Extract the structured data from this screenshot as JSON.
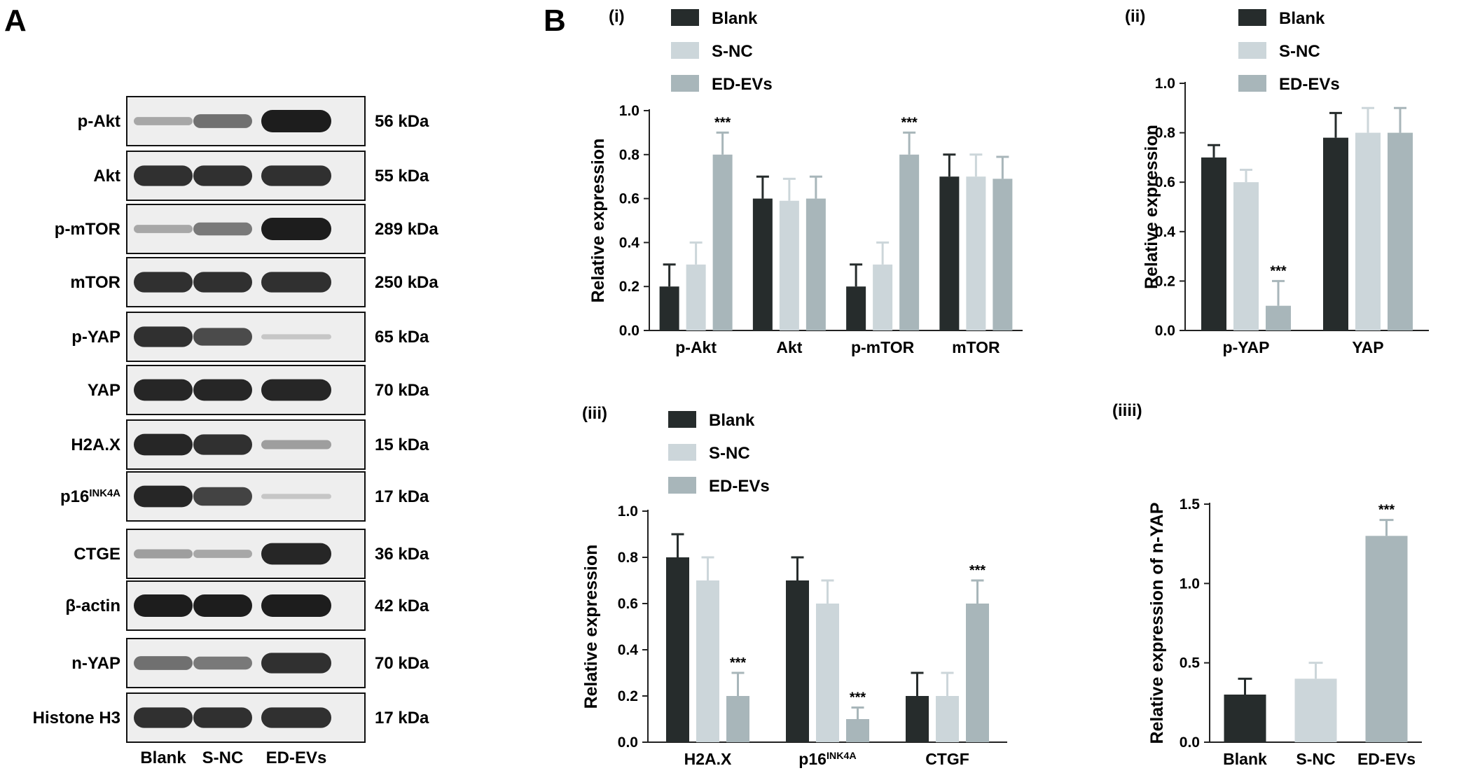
{
  "panel_a": {
    "letter": "A",
    "blots": [
      {
        "label": "p-Akt",
        "kda": "56 kDa",
        "bands": [
          0.25,
          0.55,
          1.0
        ]
      },
      {
        "label": "Akt",
        "kda": "55 kDa",
        "bands": [
          0.9,
          0.9,
          0.9
        ]
      },
      {
        "label": "p-mTOR",
        "kda": "289 kDa",
        "bands": [
          0.25,
          0.5,
          1.0
        ]
      },
      {
        "label": "mTOR",
        "kda": "250 kDa",
        "bands": [
          0.9,
          0.9,
          0.9
        ]
      },
      {
        "label": "p-YAP",
        "kda": "65 kDa",
        "bands": [
          0.9,
          0.75,
          0.08
        ]
      },
      {
        "label": "YAP",
        "kda": "70 kDa",
        "bands": [
          0.95,
          0.95,
          0.95
        ]
      },
      {
        "label": "H2A.X",
        "kda": "15 kDa",
        "bands": [
          0.95,
          0.9,
          0.3
        ]
      },
      {
        "label": "p16",
        "label_sup": "INK4A",
        "kda": "17 kDa",
        "bands": [
          0.95,
          0.8,
          0.08
        ]
      },
      {
        "label": "CTGE",
        "kda": "36 kDa",
        "bands": [
          0.3,
          0.25,
          0.95
        ]
      },
      {
        "label": "β-actin",
        "kda": "42 kDa",
        "bands": [
          1.0,
          1.0,
          1.0
        ]
      },
      {
        "label": "n-YAP",
        "kda": "70 kDa",
        "bands": [
          0.55,
          0.5,
          0.9
        ]
      },
      {
        "label": "Histone H3",
        "kda": "17 kDa",
        "bands": [
          0.9,
          0.9,
          0.9
        ]
      }
    ],
    "lanes": [
      "Blank",
      "S-NC",
      "ED-EVs"
    ]
  },
  "panel_b_letter": "B",
  "colors": {
    "Blank": "#262c2c",
    "S-NC": "#ccd6da",
    "ED-EVs": "#a8b6ba",
    "band": "#1d1d1d",
    "blot_bg": "#eeeeee"
  },
  "chart_data": [
    {
      "id": "i",
      "type": "bar",
      "subtitle": "(i)",
      "ylabel": "Relative expression",
      "ylim": [
        0,
        1.0
      ],
      "yticks": [
        "0.0",
        "0.2",
        "0.4",
        "0.6",
        "0.8",
        "1.0"
      ],
      "categories": [
        "p-Akt",
        "Akt",
        "p-mTOR",
        "mTOR"
      ],
      "legend": [
        "Blank",
        "S-NC",
        "ED-EVs"
      ],
      "series": [
        {
          "name": "Blank",
          "values": [
            0.2,
            0.6,
            0.2,
            0.7
          ],
          "errors": [
            0.1,
            0.1,
            0.1,
            0.1
          ]
        },
        {
          "name": "S-NC",
          "values": [
            0.3,
            0.59,
            0.3,
            0.7
          ],
          "errors": [
            0.1,
            0.1,
            0.1,
            0.1
          ]
        },
        {
          "name": "ED-EVs",
          "values": [
            0.8,
            0.6,
            0.8,
            0.69
          ],
          "errors": [
            0.1,
            0.1,
            0.1,
            0.1
          ]
        }
      ],
      "annotations": [
        {
          "category": 0,
          "series": 2,
          "text": "***"
        },
        {
          "category": 2,
          "series": 2,
          "text": "***"
        }
      ]
    },
    {
      "id": "ii",
      "type": "bar",
      "subtitle": "(ii)",
      "ylabel": "Relative expression",
      "ylim": [
        0,
        1.0
      ],
      "yticks": [
        "0.0",
        "0.2",
        "0.4",
        "0.6",
        "0.8",
        "1.0"
      ],
      "categories": [
        "p-YAP",
        "YAP"
      ],
      "legend": [
        "Blank",
        "S-NC",
        "ED-EVs"
      ],
      "series": [
        {
          "name": "Blank",
          "values": [
            0.7,
            0.78
          ],
          "errors": [
            0.05,
            0.1
          ]
        },
        {
          "name": "S-NC",
          "values": [
            0.6,
            0.8
          ],
          "errors": [
            0.05,
            0.1
          ]
        },
        {
          "name": "ED-EVs",
          "values": [
            0.1,
            0.8
          ],
          "errors": [
            0.1,
            0.1
          ]
        }
      ],
      "annotations": [
        {
          "category": 0,
          "series": 2,
          "text": "***"
        }
      ]
    },
    {
      "id": "iii",
      "type": "bar",
      "subtitle": "(iii)",
      "ylabel": "Relative expression",
      "ylim": [
        0,
        1.0
      ],
      "yticks": [
        "0.0",
        "0.2",
        "0.4",
        "0.6",
        "0.8",
        "1.0"
      ],
      "categories": [
        "H2A.X",
        "p16",
        "CTGF"
      ],
      "category_sups": [
        "",
        "INK4A",
        ""
      ],
      "legend": [
        "Blank",
        "S-NC",
        "ED-EVs"
      ],
      "series": [
        {
          "name": "Blank",
          "values": [
            0.8,
            0.7,
            0.2
          ],
          "errors": [
            0.1,
            0.1,
            0.1
          ]
        },
        {
          "name": "S-NC",
          "values": [
            0.7,
            0.6,
            0.2
          ],
          "errors": [
            0.1,
            0.1,
            0.1
          ]
        },
        {
          "name": "ED-EVs",
          "values": [
            0.2,
            0.1,
            0.6
          ],
          "errors": [
            0.1,
            0.05,
            0.1
          ]
        }
      ],
      "annotations": [
        {
          "category": 0,
          "series": 2,
          "text": "***"
        },
        {
          "category": 1,
          "series": 2,
          "text": "***"
        },
        {
          "category": 2,
          "series": 2,
          "text": "***"
        }
      ]
    },
    {
      "id": "iiii",
      "type": "bar",
      "subtitle": "(iiii)",
      "ylabel": "Relative expression of n-YAP",
      "ylim": [
        0,
        1.5
      ],
      "yticks": [
        "0.0",
        "0.5",
        "1.0",
        "1.5"
      ],
      "categories": [
        "Blank",
        "S-NC",
        "ED-EVs"
      ],
      "values": [
        0.3,
        0.4,
        1.3
      ],
      "errors": [
        0.1,
        0.1,
        0.1
      ],
      "annotations": [
        {
          "index": 2,
          "text": "***"
        }
      ]
    }
  ]
}
